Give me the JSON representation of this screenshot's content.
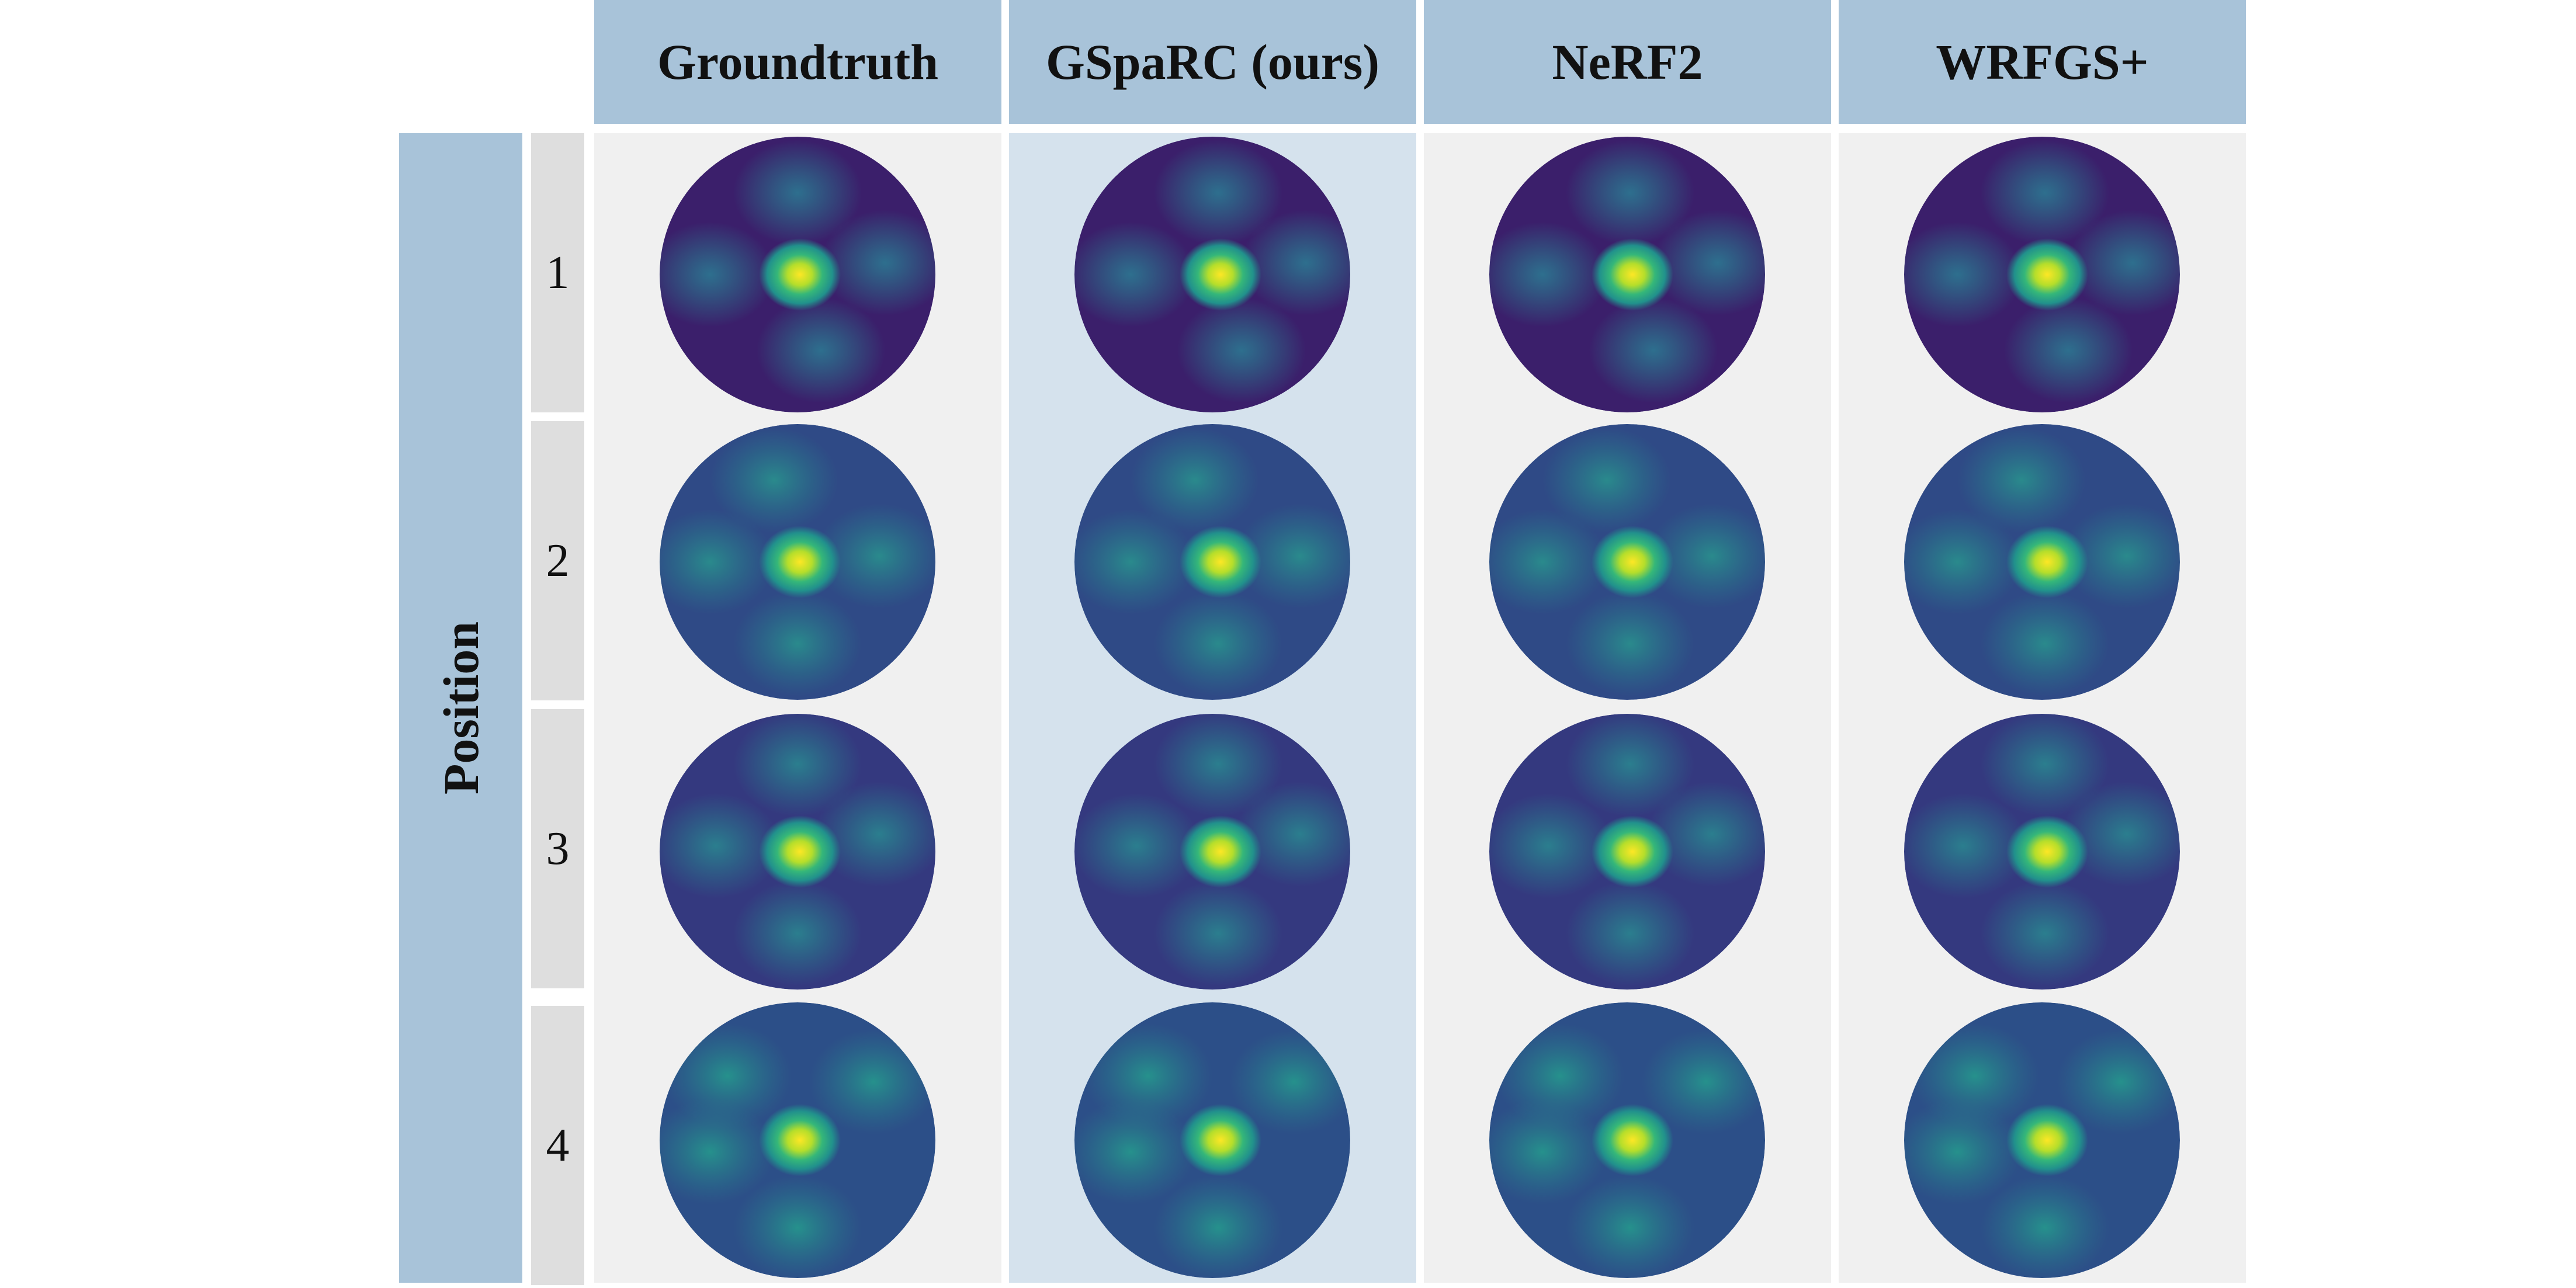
{
  "columns": [
    {
      "label": "Groundtruth",
      "highlight": false
    },
    {
      "label": "GSpaRC (ours)",
      "highlight": true
    },
    {
      "label": "NeRF2",
      "highlight": false
    },
    {
      "label": "WRFGS+",
      "highlight": false
    }
  ],
  "row_axis_label": "Position",
  "rows": [
    {
      "label": "1"
    },
    {
      "label": "2"
    },
    {
      "label": "3"
    },
    {
      "label": "4"
    }
  ],
  "colors": {
    "header_background": "#a8c3d9",
    "panel_background": "#f0f0f0",
    "highlight_panel_background": "#d5e2ed",
    "row_label_background": "#dedede",
    "colormap": "viridis"
  }
}
